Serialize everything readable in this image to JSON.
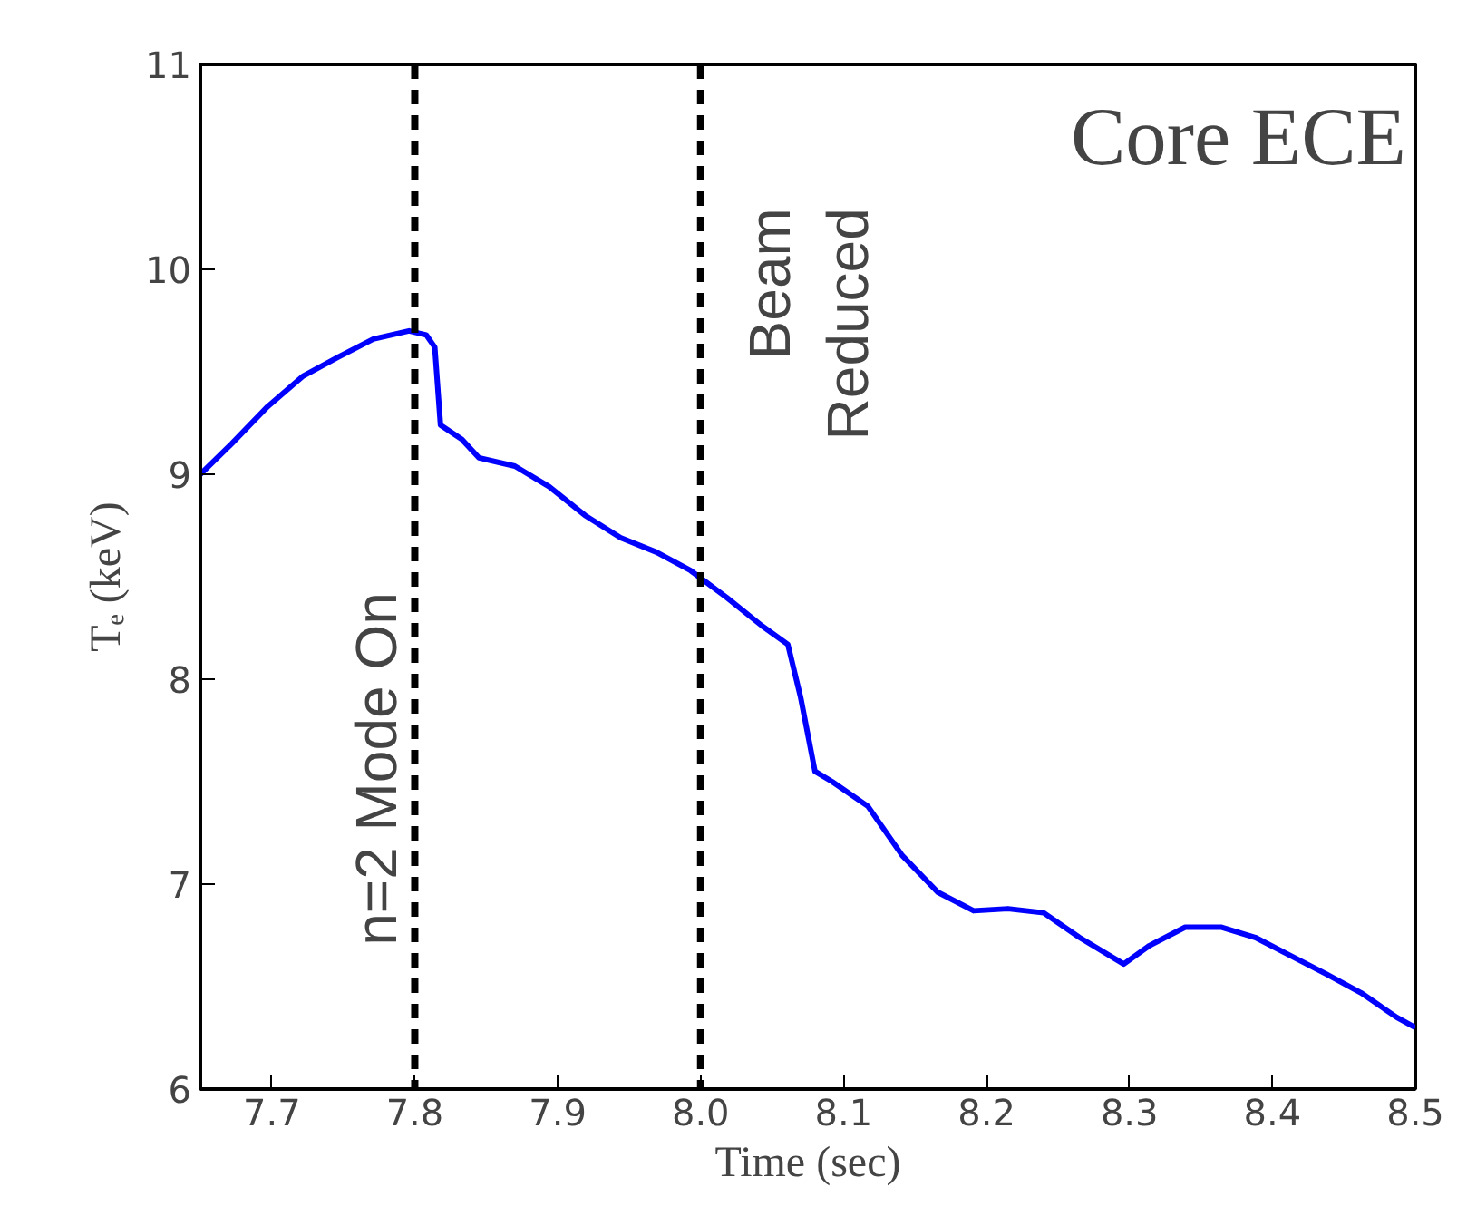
{
  "chart_data": {
    "type": "line",
    "xlabel": "Time (sec)",
    "ylabel": "Tₑ (keV)",
    "x": [
      7.65,
      7.672,
      7.697,
      7.722,
      7.746,
      7.771,
      7.796,
      7.808,
      7.814,
      7.818,
      7.833,
      7.845,
      7.87,
      7.894,
      7.919,
      7.944,
      7.969,
      7.993,
      8.018,
      8.043,
      8.061,
      8.07,
      8.08,
      8.092,
      8.117,
      8.141,
      8.166,
      8.191,
      8.215,
      8.24,
      8.265,
      8.296,
      8.314,
      8.339,
      8.364,
      8.388,
      8.413,
      8.438,
      8.462,
      8.487,
      8.5
    ],
    "series": [
      {
        "color": "#0000ff",
        "values": [
          9.0,
          9.15,
          9.33,
          9.48,
          9.57,
          9.66,
          9.7,
          9.68,
          9.62,
          9.24,
          9.17,
          9.08,
          9.04,
          8.94,
          8.8,
          8.69,
          8.62,
          8.53,
          8.4,
          8.26,
          8.17,
          7.91,
          7.55,
          7.5,
          7.38,
          7.14,
          6.96,
          6.87,
          6.88,
          6.86,
          6.74,
          6.61,
          6.7,
          6.79,
          6.79,
          6.74,
          6.65,
          6.56,
          6.47,
          6.35,
          6.3
        ]
      }
    ],
    "xlim": [
      7.65,
      8.5
    ],
    "xticks": [
      7.7,
      7.8,
      7.9,
      {
        "value": 8.0,
        "label": "8.0"
      },
      8.1,
      8.2,
      8.3,
      8.4,
      8.5
    ],
    "ylim": [
      6,
      11
    ],
    "yticks": [
      6,
      7,
      8,
      9,
      10,
      11
    ],
    "ref_lines": [
      {
        "axis": "x",
        "value": 7.8,
        "color": "#000000",
        "line_style": "dashed"
      },
      {
        "axis": "x",
        "value": 8.0,
        "color": "#000000",
        "line_style": "dashed"
      }
    ],
    "annotations": [
      {
        "text": "n=2 Mode On",
        "x": 7.8,
        "y": 6.7
      },
      {
        "text": "Beam\nReduced",
        "x": 8.0,
        "y": 10.3
      },
      "Core ECE"
    ],
    "grid": false,
    "marker": "none",
    "line_style": "solid"
  }
}
